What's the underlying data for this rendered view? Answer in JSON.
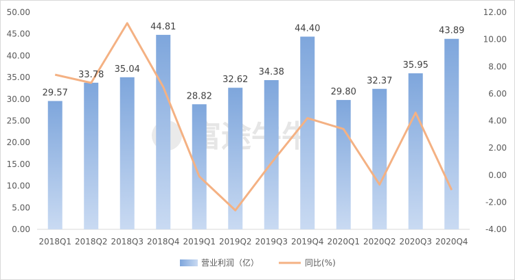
{
  "chart_data": {
    "type": "bar+line",
    "categories": [
      "2018Q1",
      "2018Q2",
      "2018Q3",
      "2018Q4",
      "2019Q1",
      "2019Q2",
      "2019Q3",
      "2019Q4",
      "2020Q1",
      "2020Q2",
      "2020Q3",
      "2020Q4"
    ],
    "series": [
      {
        "name": "营业利润（亿）",
        "type": "bar",
        "axis": "left",
        "values": [
          29.57,
          33.78,
          35.04,
          44.81,
          28.82,
          32.62,
          34.38,
          44.4,
          29.8,
          32.37,
          35.95,
          43.89
        ],
        "labels": [
          "29.57",
          "33.78",
          "35.04",
          "44.81",
          "28.82",
          "32.62",
          "34.38",
          "44.40",
          "29.80",
          "32.37",
          "35.95",
          "43.89"
        ],
        "color": "#7ea6dc"
      },
      {
        "name": "同比(%)",
        "type": "line",
        "axis": "right",
        "values": [
          7.4,
          6.8,
          11.2,
          6.5,
          -0.1,
          -2.6,
          0.9,
          4.2,
          3.4,
          -0.7,
          4.6,
          -1.1
        ],
        "color": "#f4b183"
      }
    ],
    "y_left": {
      "range": [
        0,
        50
      ],
      "ticks": [
        "0.00",
        "5.00",
        "10.00",
        "15.00",
        "20.00",
        "25.00",
        "30.00",
        "35.00",
        "40.00",
        "45.00",
        "50.00"
      ]
    },
    "y_right": {
      "range": [
        -4,
        12
      ],
      "ticks": [
        "-4.00",
        "-2.00",
        "0.00",
        "2.00",
        "4.00",
        "6.00",
        "8.00",
        "10.00",
        "12.00"
      ]
    },
    "grid": false,
    "legend": "bottom",
    "watermark": "富途牛牛"
  }
}
